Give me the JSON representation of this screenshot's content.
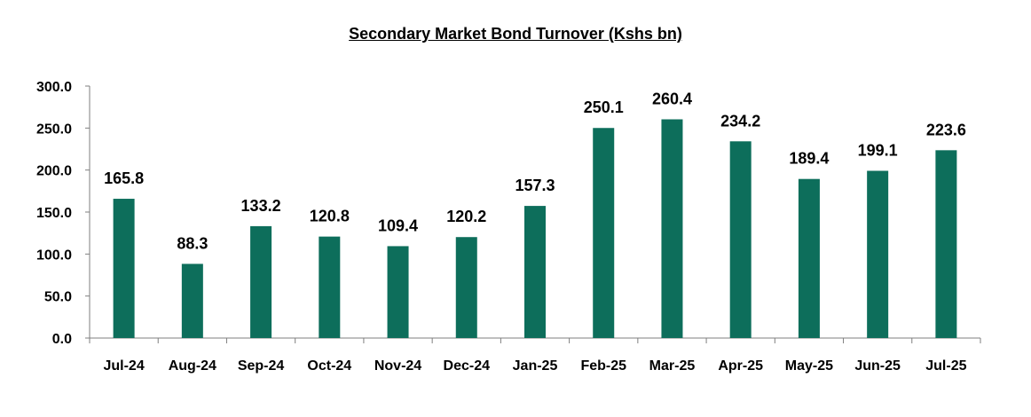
{
  "chart_data": {
    "type": "bar",
    "title": "Secondary Market Bond Turnover (Kshs bn)",
    "categories": [
      "Jul-24",
      "Aug-24",
      "Sep-24",
      "Oct-24",
      "Nov-24",
      "Dec-24",
      "Jan-25",
      "Feb-25",
      "Mar-25",
      "Apr-25",
      "May-25",
      "Jun-25",
      "Jul-25"
    ],
    "values": [
      165.8,
      88.3,
      133.2,
      120.8,
      109.4,
      120.2,
      157.3,
      250.1,
      260.4,
      234.2,
      189.4,
      199.1,
      223.6
    ],
    "value_labels": [
      "165.8",
      "88.3",
      "133.2",
      "120.8",
      "109.4",
      "120.2",
      "157.3",
      "250.1",
      "260.4",
      "234.2",
      "189.4",
      "199.1",
      "223.6"
    ],
    "ylim": [
      0,
      300
    ],
    "yticks": [
      "0.0",
      "50.0",
      "100.0",
      "150.0",
      "200.0",
      "250.0",
      "300.0"
    ],
    "xlabel": "",
    "ylabel": "",
    "grid": false,
    "legend": "none",
    "bar_color": "#0d6e5b"
  }
}
